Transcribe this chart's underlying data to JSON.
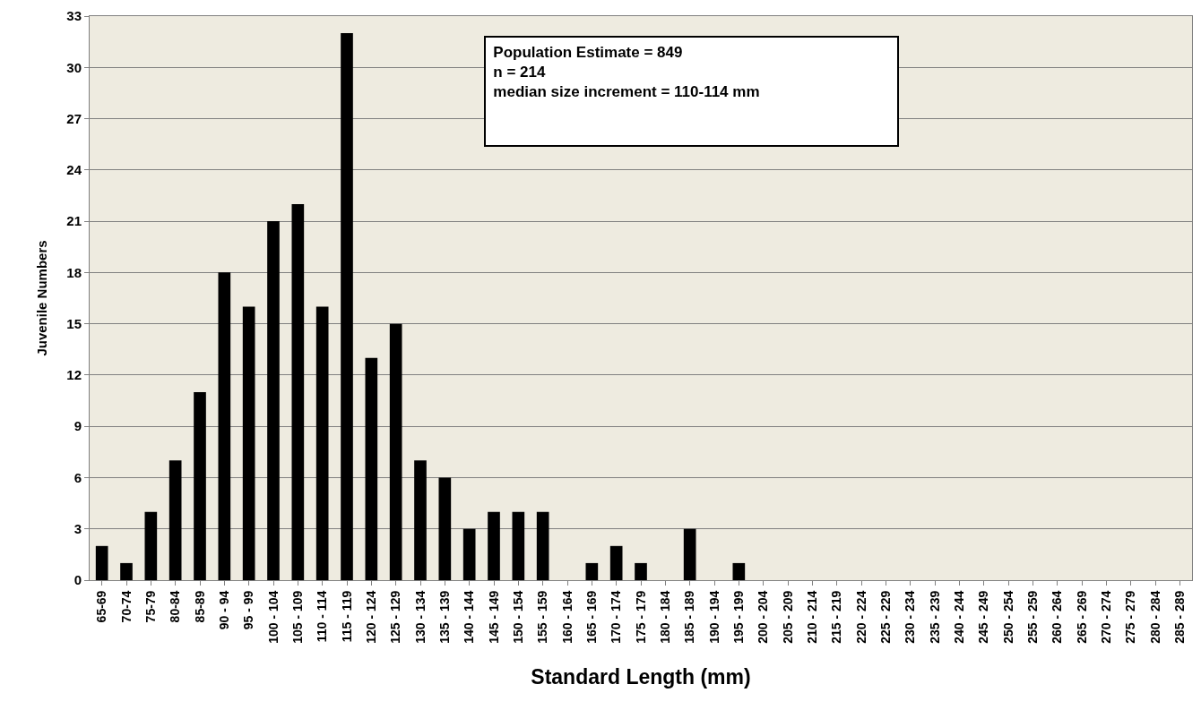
{
  "chart_data": {
    "type": "bar",
    "xlabel": "Standard Length (mm)",
    "ylabel": "Juvenile Numbers",
    "categories": [
      "65-69",
      "70-74",
      "75-79",
      "80-84",
      "85-89",
      "90 - 94",
      "95 - 99",
      "100 - 104",
      "105 - 109",
      "110 - 114",
      "115 - 119",
      "120 - 124",
      "125 - 129",
      "130 - 134",
      "135 - 139",
      "140 - 144",
      "145 - 149",
      "150 - 154",
      "155 - 159",
      "160 - 164",
      "165 - 169",
      "170 - 174",
      "175 - 179",
      "180 - 184",
      "185 - 189",
      "190 - 194",
      "195 - 199",
      "200 - 204",
      "205 - 209",
      "210 - 214",
      "215 - 219",
      "220 - 224",
      "225 - 229",
      "230 - 234",
      "235 - 239",
      "240 - 244",
      "245 - 249",
      "250 - 254",
      "255 - 259",
      "260 - 264",
      "265 - 269",
      "270 - 274",
      "275 - 279",
      "280 - 284",
      "285 - 289"
    ],
    "values": [
      2,
      1,
      4,
      7,
      11,
      18,
      16,
      21,
      22,
      16,
      32,
      13,
      15,
      7,
      6,
      3,
      4,
      4,
      4,
      0,
      1,
      2,
      1,
      0,
      3,
      0,
      1,
      0,
      0,
      0,
      0,
      0,
      0,
      0,
      0,
      0,
      0,
      0,
      0,
      0,
      0,
      0,
      0,
      0,
      0
    ],
    "color": "#000000",
    "ylim": [
      0,
      33
    ],
    "yticks": [
      0,
      3,
      6,
      9,
      12,
      15,
      18,
      21,
      24,
      27,
      30,
      33
    ],
    "grid": "y",
    "annotations": [
      "Population Estimate = 849",
      "n = 214",
      "median size increment = 110-114 mm"
    ]
  }
}
